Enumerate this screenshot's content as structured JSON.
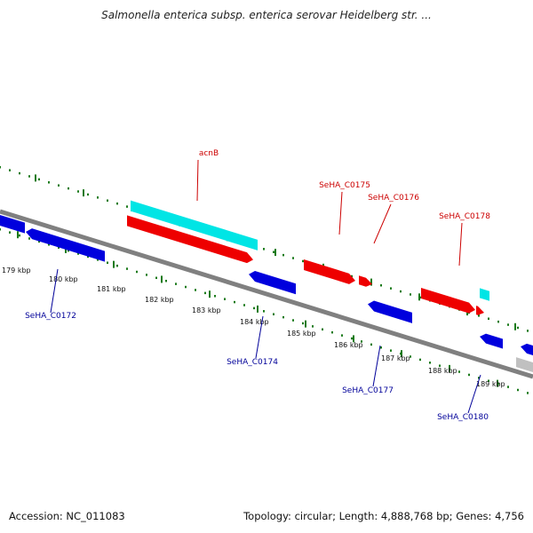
{
  "title": "Salmonella enterica subsp. enterica serovar Heidelberg str. ...",
  "footer": {
    "accession": "Accession: NC_011083",
    "summary": "Topology: circular; Length: 4,888,768 bp; Genes: 4,756"
  },
  "colors": {
    "backbone": "#808080",
    "tick": "#1a7a1a",
    "forward_gene": "#ee0000",
    "reverse_gene": "#0000dd",
    "highlight_gene": "#00e5e5",
    "other_gene": "#c0c0c0",
    "forward_label": "#cc0000",
    "reverse_label": "#000099"
  },
  "scale_labels": [
    "179 kbp",
    "180 kbp",
    "181 kbp",
    "182 kbp",
    "183 kbp",
    "184 kbp",
    "185 kbp",
    "186 kbp",
    "187 kbp",
    "188 kbp",
    "189 kbp"
  ],
  "gene_labels": [
    {
      "name": "acnB",
      "strand": "forward"
    },
    {
      "name": "SeHA_C0175",
      "strand": "forward"
    },
    {
      "name": "SeHA_C0176",
      "strand": "forward"
    },
    {
      "name": "SeHA_C0178",
      "strand": "forward"
    },
    {
      "name": "SeHA_C0172",
      "strand": "reverse"
    },
    {
      "name": "SeHA_C0174",
      "strand": "reverse"
    },
    {
      "name": "SeHA_C0177",
      "strand": "reverse"
    },
    {
      "name": "SeHA_C0180",
      "strand": "reverse"
    }
  ]
}
